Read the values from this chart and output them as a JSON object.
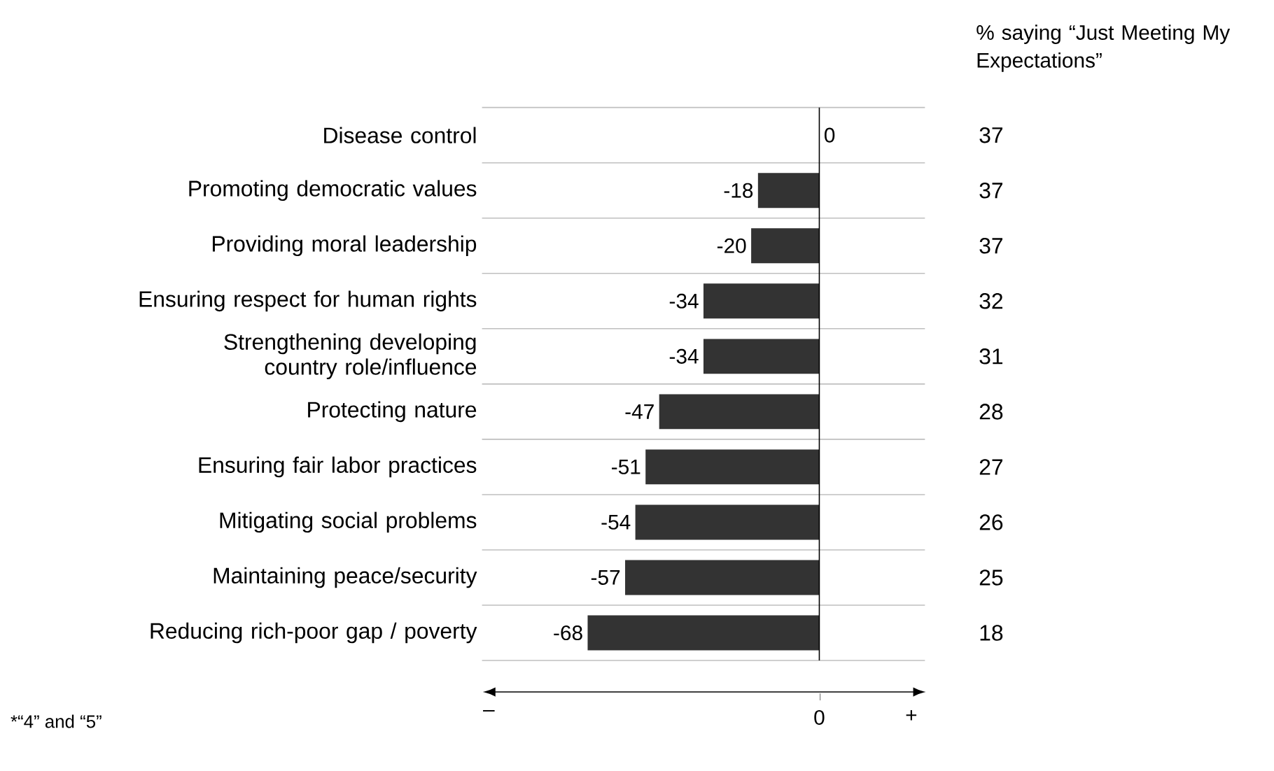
{
  "chart_data": {
    "type": "bar",
    "orientation": "horizontal",
    "categories": [
      "Disease control",
      "Promoting democratic values",
      "Providing moral leadership",
      "Ensuring respect for human rights",
      "Strengthening developing country role/influence",
      "Protecting nature",
      "Ensuring fair labor practices",
      "Mitigating social problems",
      "Maintaining peace/security",
      "Reducing rich-poor gap / poverty"
    ],
    "values": [
      0,
      -18,
      -20,
      -34,
      -34,
      -47,
      -51,
      -54,
      -57,
      -68
    ],
    "color": "#333333",
    "data_labels": true,
    "grid": "y",
    "xlim": [
      -99,
      31
    ],
    "annotations": [
      "% saying “Just Meeting My Expectations”",
      "37",
      "37",
      "37",
      "32",
      "31",
      "28",
      "27",
      "26",
      "25",
      "18",
      "*“4” and “5”",
      "–",
      "0",
      "+"
    ]
  }
}
